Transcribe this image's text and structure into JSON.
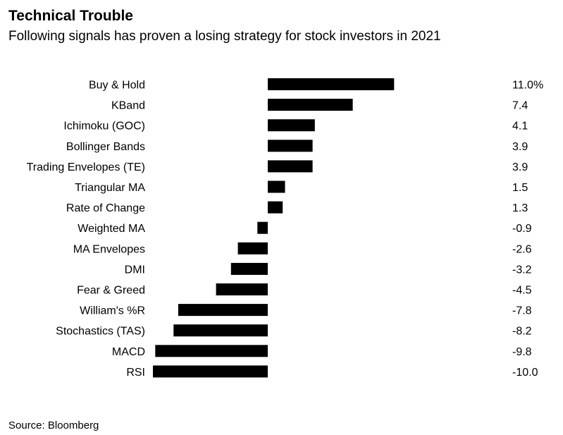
{
  "header": {
    "title": "Technical Trouble",
    "subtitle": "Following signals has proven a losing strategy for stock investors in 2021"
  },
  "footer": {
    "source": "Source: Bloomberg"
  },
  "colors": {
    "bar": "#000000",
    "text": "#000000",
    "background": "#ffffff"
  },
  "chart_data": {
    "type": "bar",
    "orientation": "horizontal",
    "title": "Technical Trouble",
    "subtitle": "Following signals has proven a losing strategy for stock investors in 2021",
    "categories": [
      "Buy & Hold",
      "KBand",
      "Ichimoku (GOC)",
      "Bollinger Bands",
      "Trading Envelopes (TE)",
      "Triangular MA",
      "Rate of Change",
      "Weighted MA",
      "MA Envelopes",
      "DMI",
      "Fear & Greed",
      "William's %R",
      "Stochastics (TAS)",
      "MACD",
      "RSI"
    ],
    "values": [
      11.0,
      7.4,
      4.1,
      3.9,
      3.9,
      1.5,
      1.3,
      -0.9,
      -2.6,
      -3.2,
      -4.5,
      -7.8,
      -8.2,
      -9.8,
      -10.0
    ],
    "value_labels": [
      "11.0%",
      "7.4",
      "4.1",
      "3.9",
      "3.9",
      "1.5",
      "1.3",
      "-0.9",
      "-2.6",
      "-3.2",
      "-4.5",
      "-7.8",
      "-8.2",
      "-9.8",
      "-10.0"
    ],
    "xlim": [
      -10.0,
      11.0
    ],
    "grid": false,
    "legend": "none"
  }
}
